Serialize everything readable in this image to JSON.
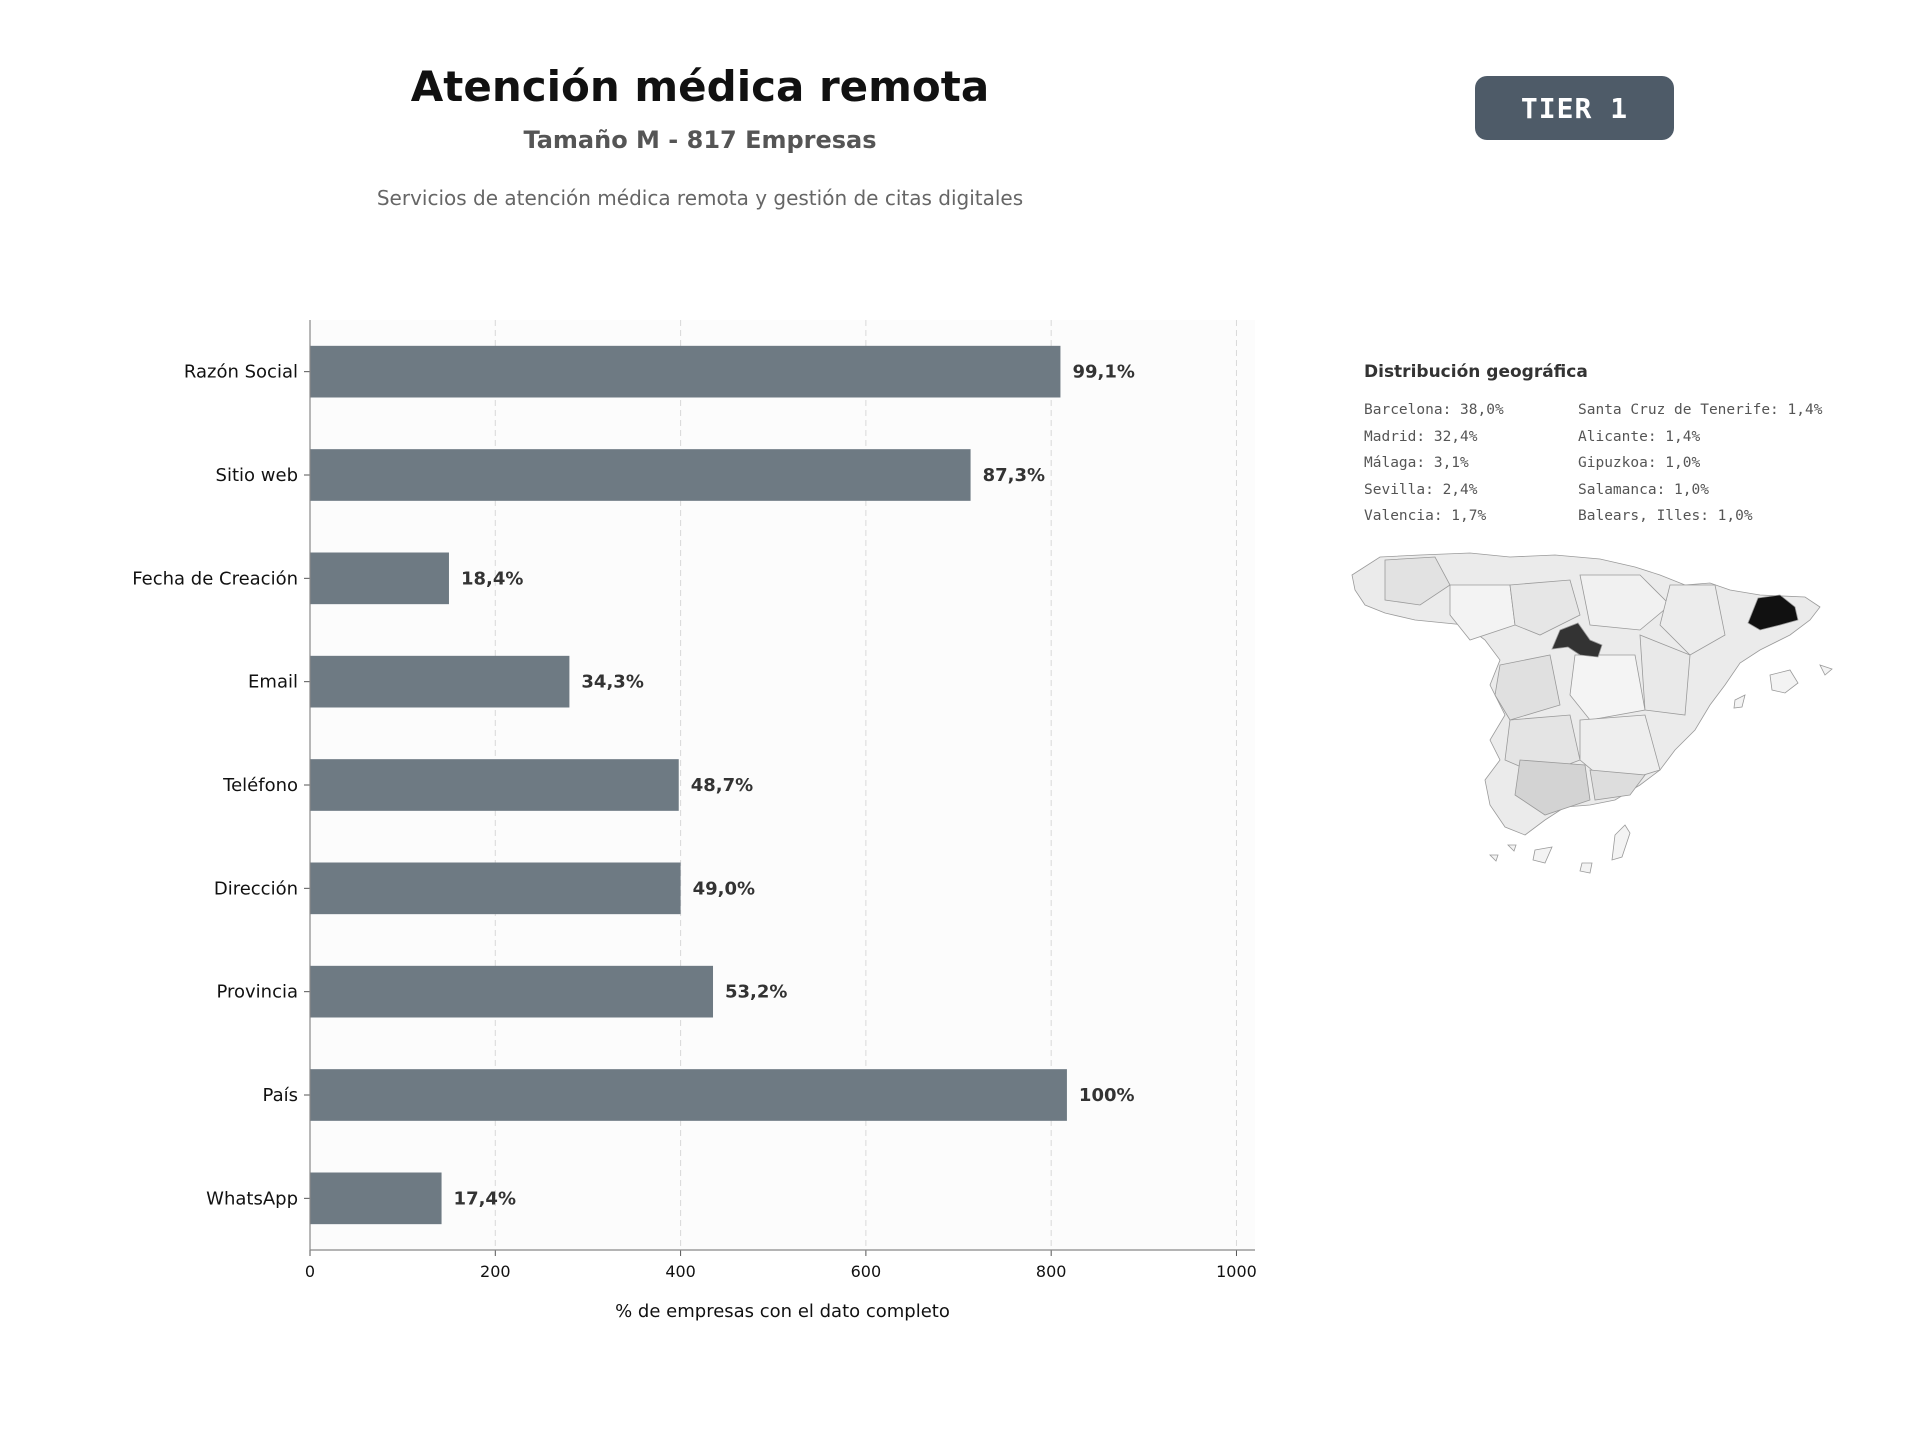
{
  "header": {
    "title": "Atención médica remota",
    "subtitle": "Tamaño M - 817 Empresas",
    "description": "Servicios de atención médica remota y gestión de citas digitales",
    "tier": "TIER 1"
  },
  "chart_data": {
    "type": "bar",
    "orientation": "horizontal",
    "categories": [
      "Razón Social",
      "Sitio web",
      "Fecha de Creación",
      "Email",
      "Teléfono",
      "Dirección",
      "Provincia",
      "País",
      "WhatsApp"
    ],
    "values": [
      810,
      713,
      150,
      280,
      398,
      400,
      435,
      817,
      142
    ],
    "labels": [
      "99,1%",
      "87,3%",
      "18,4%",
      "34,3%",
      "48,7%",
      "49,0%",
      "53,2%",
      "100%",
      "17,4%"
    ],
    "xlabel": "% de empresas con el dato completo",
    "ylabel": "",
    "xlim": [
      0,
      1020
    ],
    "xticks": [
      0,
      200,
      400,
      600,
      800,
      1000
    ],
    "grid": true,
    "bar_color": "#6e7a83"
  },
  "geo": {
    "title": "Distribución geográfica",
    "left_column": [
      "Barcelona: 38,0%",
      "Madrid: 32,4%",
      "Málaga: 3,1%",
      "Sevilla: 2,4%",
      "Valencia: 1,7%"
    ],
    "right_column": [
      "Santa Cruz de Tenerife: 1,4%",
      "Alicante: 1,4%",
      "Gipuzkoa: 1,0%",
      "Salamanca: 1,0%",
      "Balears, Illes: 1,0%"
    ]
  }
}
